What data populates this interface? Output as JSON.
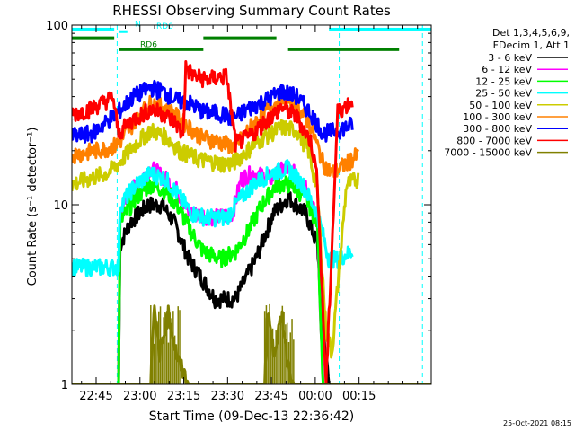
{
  "chart_data": {
    "type": "line",
    "title": "RHESSI Observing Summary Count Rates",
    "xlabel": "Start Time (09-Dec-13 22:36:42)",
    "ylabel": "Count Rate (s⁻¹ detector⁻¹)",
    "footer_date": "25-Oct-2021 08:15",
    "yscale": "log",
    "ylim": [
      1,
      100
    ],
    "xlim_min_from_start": [
      0,
      123
    ],
    "x_ticks": [
      {
        "label": "22:45",
        "min": 8.3
      },
      {
        "label": "23:00",
        "min": 23.3
      },
      {
        "label": "23:15",
        "min": 38.3
      },
      {
        "label": "23:30",
        "min": 53.3
      },
      {
        "label": "23:45",
        "min": 68.3
      },
      {
        "label": "00:00",
        "min": 83.3
      },
      {
        "label": "00:15",
        "min": 98.3
      }
    ],
    "y_ticks": [
      {
        "label": "1",
        "value": 1
      },
      {
        "label": "10",
        "value": 10
      },
      {
        "label": "100",
        "value": 100
      }
    ],
    "legend_title": [
      "Det 1,3,4,5,6,9,",
      "FDecim 1, Att 1"
    ],
    "series": [
      {
        "name": "3 - 6 keV",
        "color": "#000000",
        "points": [
          [
            0,
            1
          ],
          [
            16,
            1
          ],
          [
            16.5,
            6
          ],
          [
            20,
            8
          ],
          [
            26,
            10
          ],
          [
            31,
            10
          ],
          [
            35,
            8
          ],
          [
            40,
            5
          ],
          [
            44,
            4
          ],
          [
            49,
            3
          ],
          [
            56,
            3
          ],
          [
            63,
            5
          ],
          [
            69,
            9
          ],
          [
            74,
            11
          ],
          [
            80,
            9
          ],
          [
            84,
            6
          ],
          [
            86,
            2
          ],
          [
            88,
            1
          ],
          [
            123,
            1
          ]
        ]
      },
      {
        "name": "6 - 12 keV",
        "color": "#ff00ff",
        "points": [
          [
            0,
            1
          ],
          [
            16,
            1
          ],
          [
            16.5,
            9
          ],
          [
            22,
            13
          ],
          [
            27,
            16
          ],
          [
            32,
            14
          ],
          [
            36,
            12
          ],
          [
            40,
            9
          ],
          [
            50,
            8.5
          ],
          [
            55,
            9
          ],
          [
            58,
            14
          ],
          [
            62,
            15
          ],
          [
            68,
            14
          ],
          [
            73,
            16
          ],
          [
            76,
            15
          ],
          [
            80,
            13
          ],
          [
            84,
            8
          ],
          [
            86,
            1
          ],
          [
            123,
            1
          ]
        ]
      },
      {
        "name": "12 - 25 keV",
        "color": "#00ff00",
        "points": [
          [
            0,
            1
          ],
          [
            16,
            1
          ],
          [
            16.5,
            8
          ],
          [
            22,
            11
          ],
          [
            27,
            13
          ],
          [
            32,
            12
          ],
          [
            36,
            10
          ],
          [
            41,
            7
          ],
          [
            45,
            5.5
          ],
          [
            51,
            5
          ],
          [
            56,
            5.5
          ],
          [
            60,
            7
          ],
          [
            65,
            10
          ],
          [
            70,
            13
          ],
          [
            75,
            13
          ],
          [
            80,
            11
          ],
          [
            84,
            8
          ],
          [
            86,
            1
          ],
          [
            123,
            1
          ]
        ]
      },
      {
        "name": "25 - 50 keV",
        "color": "#00ffff",
        "points": [
          [
            0,
            4.5
          ],
          [
            7,
            4.5
          ],
          [
            16,
            4.5
          ],
          [
            16.5,
            10
          ],
          [
            22,
            13
          ],
          [
            27,
            15
          ],
          [
            32,
            14
          ],
          [
            37,
            11
          ],
          [
            41,
            9
          ],
          [
            46,
            8.5
          ],
          [
            53,
            8.5
          ],
          [
            56,
            10
          ],
          [
            62,
            13
          ],
          [
            68,
            15
          ],
          [
            74,
            16
          ],
          [
            79,
            13
          ],
          [
            84,
            9
          ],
          [
            88,
            5
          ],
          [
            91,
            5
          ],
          [
            96,
            5.5
          ]
        ]
      },
      {
        "name": "50 - 100 keV",
        "color": "#cccc00",
        "points": [
          [
            0,
            13
          ],
          [
            6,
            14
          ],
          [
            12,
            15
          ],
          [
            16,
            17
          ],
          [
            22,
            22
          ],
          [
            27,
            26
          ],
          [
            32,
            24
          ],
          [
            37,
            20
          ],
          [
            43,
            18
          ],
          [
            51,
            17
          ],
          [
            55,
            17
          ],
          [
            60,
            20
          ],
          [
            66,
            24
          ],
          [
            72,
            27
          ],
          [
            77,
            26
          ],
          [
            81,
            20
          ],
          [
            84,
            12
          ],
          [
            87,
            2
          ],
          [
            89,
            1.5
          ],
          [
            94,
            13
          ],
          [
            98,
            14
          ]
        ]
      },
      {
        "name": "100 - 300 keV",
        "color": "#ff8000",
        "points": [
          [
            0,
            19
          ],
          [
            8,
            20
          ],
          [
            14,
            21
          ],
          [
            16,
            22
          ],
          [
            22,
            30
          ],
          [
            27,
            37
          ],
          [
            32,
            35
          ],
          [
            37,
            30
          ],
          [
            44,
            24
          ],
          [
            52,
            22
          ],
          [
            56,
            21
          ],
          [
            61,
            27
          ],
          [
            67,
            34
          ],
          [
            72,
            39
          ],
          [
            77,
            36
          ],
          [
            82,
            27
          ],
          [
            86,
            17
          ],
          [
            89,
            15
          ],
          [
            94,
            17
          ],
          [
            98,
            19
          ]
        ]
      },
      {
        "name": "300 - 800 keV",
        "color": "#0000ff",
        "points": [
          [
            0,
            24
          ],
          [
            7,
            25
          ],
          [
            13,
            30
          ],
          [
            16,
            33
          ],
          [
            21,
            40
          ],
          [
            27,
            45
          ],
          [
            31,
            43
          ],
          [
            36,
            38
          ],
          [
            40,
            37
          ],
          [
            45,
            33
          ],
          [
            52,
            32
          ],
          [
            55,
            30
          ],
          [
            60,
            34
          ],
          [
            66,
            38
          ],
          [
            72,
            43
          ],
          [
            77,
            40
          ],
          [
            82,
            32
          ],
          [
            86,
            25
          ],
          [
            91,
            26
          ],
          [
            96,
            28
          ]
        ]
      },
      {
        "name": "800 - 7000 keV",
        "color": "#ff0000",
        "points": [
          [
            0,
            32
          ],
          [
            6,
            34
          ],
          [
            12,
            38
          ],
          [
            14,
            40
          ],
          [
            16,
            25
          ],
          [
            21,
            30
          ],
          [
            27,
            34
          ],
          [
            32,
            32
          ],
          [
            36,
            28
          ],
          [
            38,
            24
          ],
          [
            39,
            58
          ],
          [
            42,
            52
          ],
          [
            46,
            50
          ],
          [
            53,
            52
          ],
          [
            56,
            22
          ],
          [
            61,
            24
          ],
          [
            66,
            29
          ],
          [
            72,
            35
          ],
          [
            77,
            31
          ],
          [
            82,
            22
          ],
          [
            84,
            14
          ],
          [
            87,
            1
          ],
          [
            91,
            33
          ],
          [
            96,
            38
          ]
        ]
      },
      {
        "name": "7000 - 15000 keV",
        "color": "#808000",
        "points": [
          [
            0,
            1
          ],
          [
            27,
            1
          ],
          [
            28,
            2.7
          ],
          [
            30,
            1.5
          ],
          [
            33,
            2.5
          ],
          [
            36,
            1.4
          ],
          [
            40,
            1
          ],
          [
            66,
            1
          ],
          [
            67,
            2.7
          ],
          [
            69,
            1.5
          ],
          [
            72,
            2.4
          ],
          [
            74,
            1.3
          ],
          [
            76,
            1
          ],
          [
            123,
            1
          ]
        ]
      }
    ],
    "bars": [
      {
        "label": "N",
        "color": "#00ffff",
        "segments": [
          [
            0,
            14.5
          ],
          [
            88,
            123
          ]
        ],
        "level": 95
      },
      {
        "label": "RD0",
        "color": "#00ffff",
        "segments": [
          [
            16,
            19
          ]
        ],
        "level": 92
      },
      {
        "label": "",
        "color": "#008000",
        "segments": [
          [
            0,
            14.5
          ],
          [
            45,
            70
          ]
        ],
        "level": 85
      },
      {
        "label": "RD6",
        "color": "#008000",
        "segments": [
          [
            16,
            45
          ],
          [
            74,
            112
          ]
        ],
        "level": 73
      }
    ]
  }
}
